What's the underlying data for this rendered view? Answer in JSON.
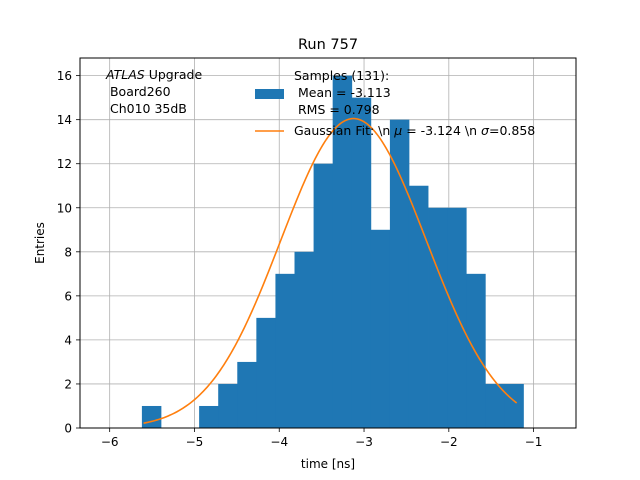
{
  "chart_data": {
    "type": "bar",
    "title": "Run 757",
    "xlabel": "time [ns]",
    "ylabel": "Entries",
    "xlim": [
      -6.35,
      -0.5
    ],
    "ylim": [
      0,
      16.8
    ],
    "grid": true,
    "x_ticks": [
      -6,
      -5,
      -4,
      -3,
      -2,
      -1
    ],
    "y_ticks": [
      0,
      2,
      4,
      6,
      8,
      10,
      12,
      14,
      16
    ],
    "x_tick_labels": [
      "−6",
      "−5",
      "−4",
      "−3",
      "−2",
      "−1"
    ],
    "y_tick_labels": [
      "0",
      "2",
      "4",
      "6",
      "8",
      "10",
      "12",
      "14",
      "16"
    ],
    "histogram": {
      "name": "Samples (131):",
      "color": "#1f77b4",
      "bin_edges": [
        -5.62,
        -5.395,
        -5.17,
        -4.945,
        -4.72,
        -4.495,
        -4.27,
        -4.045,
        -3.82,
        -3.595,
        -3.37,
        -3.145,
        -2.92,
        -2.695,
        -2.47,
        -2.245,
        -2.02,
        -1.795,
        -1.57,
        -1.345,
        -1.12
      ],
      "counts": [
        1,
        0,
        0,
        1,
        2,
        3,
        5,
        7,
        8,
        12,
        16,
        15,
        9,
        14,
        11,
        10,
        10,
        7,
        2,
        2
      ]
    },
    "gaussian_fit": {
      "name": "Gaussian Fit: \\n $\\mu$ = -3.124 \\n $\\sigma$=0.858",
      "color": "#ff7f0e",
      "mu": -3.124,
      "sigma": 0.858,
      "amplitude": 14.05,
      "x_range": [
        -5.6,
        -1.2
      ]
    },
    "legend_position": "upper-right",
    "annotation": {
      "italic": "ATLAS",
      "rest": " Upgrade",
      "line2": " Board260",
      "line3": " Ch010 35dB"
    }
  },
  "legend": {
    "samples_line1": "Samples (131):",
    "samples_line2": " Mean = -3.113",
    "samples_line3": " RMS = 0.798",
    "fit_prefix": "Gaussian Fit: \\n ",
    "fit_mu_symbol": "μ",
    "fit_mid": " = -3.124 \\n ",
    "fit_sigma_symbol": "σ",
    "fit_suffix": "=0.858"
  }
}
